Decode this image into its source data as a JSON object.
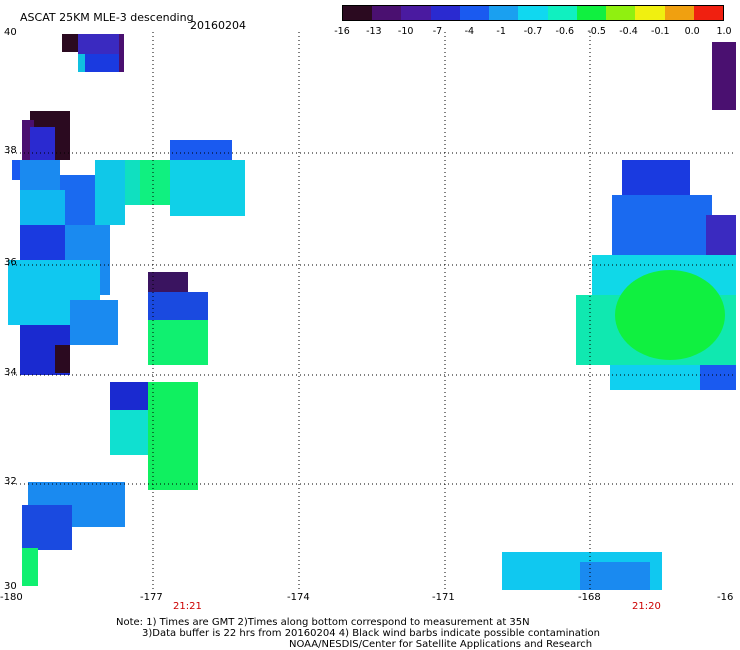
{
  "header": {
    "title": "ASCAT 25KM MLE-3 descending",
    "date": "20160204"
  },
  "colorbar": {
    "labels": [
      "-16",
      "-13",
      "-10",
      "-7",
      "-4",
      "-1",
      "-0.7",
      "-0.6",
      "-0.5",
      "-0.4",
      "-0.1",
      "0.0",
      "1.0"
    ],
    "colors": [
      "#2b0a20",
      "#4a1070",
      "#4a1aa0",
      "#2a2ad0",
      "#1a5af0",
      "#1aa0f0",
      "#10d8f0",
      "#10f0c0",
      "#10f040",
      "#90f010",
      "#f0f010",
      "#f0a010",
      "#f02010"
    ]
  },
  "axes": {
    "x_ticks": [
      "-180",
      "-177",
      "-174",
      "-171",
      "-168",
      "-16"
    ],
    "y_ticks": [
      "40",
      "38",
      "36",
      "34",
      "32",
      "30"
    ]
  },
  "time_labels": [
    "21:21",
    "21:20"
  ],
  "footer": {
    "line1": "Note: 1) Times are GMT 2)Times along bottom correspond to measurement at 35N",
    "line2": "3)Data buffer is 22 hrs from 20160204 4) Black wind barbs indicate possible contamination",
    "line3": "NOAA/NESDIS/Center for Satellite Applications and Research"
  }
}
